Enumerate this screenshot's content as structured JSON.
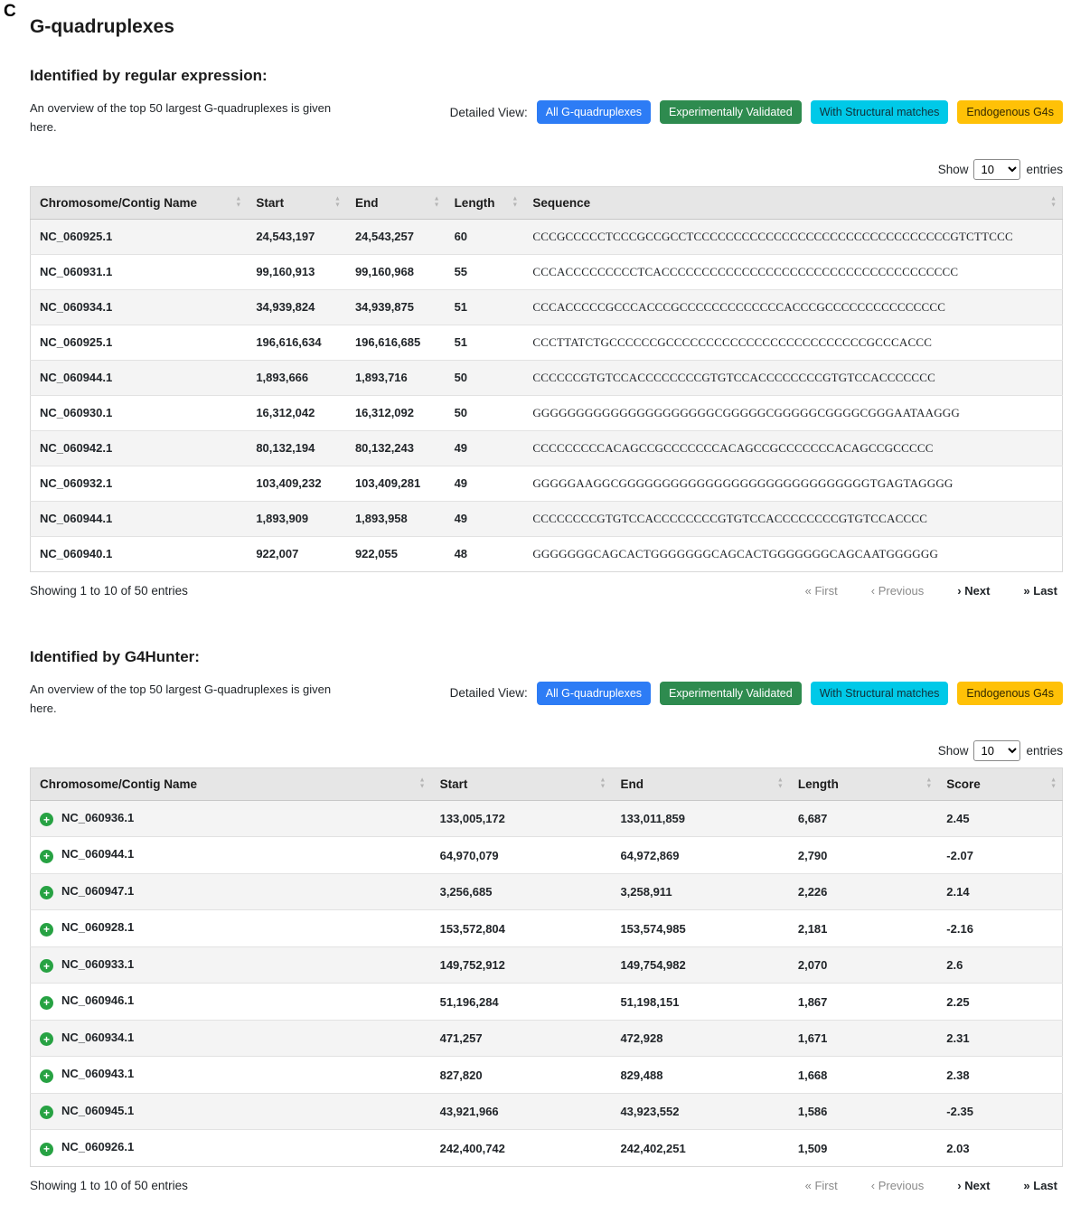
{
  "panel_label": "C",
  "page_title": "G-quadruplexes",
  "detailed_view_label": "Detailed View:",
  "detail_buttons": [
    {
      "key": "all-g-quadruplexes",
      "label": "All G-quadruplexes",
      "bg": "#2d7cf5",
      "fg": "#ffffff"
    },
    {
      "key": "experimentally-validated",
      "label": "Experimentally Validated",
      "bg": "#2e8b4f",
      "fg": "#ffffff"
    },
    {
      "key": "structural-matches",
      "label": "With Structural matches",
      "bg": "#00c9e8",
      "fg": "#10313a"
    },
    {
      "key": "endogenous-g4s",
      "label": "Endogenous G4s",
      "bg": "#ffc107",
      "fg": "#332800"
    }
  ],
  "show_label": "Show",
  "entries_label": "entries",
  "page_size": "10",
  "pagination": [
    {
      "key": "first",
      "label": "« First",
      "enabled": false
    },
    {
      "key": "previous",
      "label": "‹ Previous",
      "enabled": false
    },
    {
      "key": "next",
      "label": "› Next",
      "enabled": true
    },
    {
      "key": "last",
      "label": "» Last",
      "enabled": true
    }
  ],
  "sections": [
    {
      "id": "regex",
      "heading": "Identified by regular expression:",
      "description": "An overview of the top 50 largest G-quadruplexes is given here.",
      "columns": [
        "Chromosome/Contig Name",
        "Start",
        "End",
        "Length",
        "Sequence"
      ],
      "expandable": false,
      "rows": [
        [
          "NC_060925.1",
          "24,543,197",
          "24,543,257",
          "60",
          "CCCGCCCCCTCCCGCCGCCTCCCCCCCCCCCCCCCCCCCCCCCCCCCCCCCCGTCTTCCC"
        ],
        [
          "NC_060931.1",
          "99,160,913",
          "99,160,968",
          "55",
          "CCCACCCCCCCCCTCACCCCCCCCCCCCCCCCCCCCCCCCCCCCCCCCCCCCC"
        ],
        [
          "NC_060934.1",
          "34,939,824",
          "34,939,875",
          "51",
          "CCCACCCCCGCCCACCCGCCCCCCCCCCCCCACCCGCCCCCCCCCCCCCCC"
        ],
        [
          "NC_060925.1",
          "196,616,634",
          "196,616,685",
          "51",
          "CCCTTATCTGCCCCCCGCCCCCCCCCCCCCCCCCCCCCCCCCGCCCACCC"
        ],
        [
          "NC_060944.1",
          "1,893,666",
          "1,893,716",
          "50",
          "CCCCCCGTGTCCACCCCCCCCGTGTCCACCCCCCCCGTGTCCACCCCCCC"
        ],
        [
          "NC_060930.1",
          "16,312,042",
          "16,312,092",
          "50",
          "GGGGGGGGGGGGGGGGGGGGGCGGGGGCGGGGGCGGGGCGGGAATAAGGG"
        ],
        [
          "NC_060942.1",
          "80,132,194",
          "80,132,243",
          "49",
          "CCCCCCCCCACAGCCGCCCCCCCACAGCCGCCCCCCCACAGCCGCCCCC"
        ],
        [
          "NC_060932.1",
          "103,409,232",
          "103,409,281",
          "49",
          "GGGGGAAGGCGGGGGGGGGGGGGGGGGGGGGGGGGGGGGTGAGTAGGGG"
        ],
        [
          "NC_060944.1",
          "1,893,909",
          "1,893,958",
          "49",
          "CCCCCCCCGTGTCCACCCCCCCCGTGTCCACCCCCCCCGTGTCCACCCC"
        ],
        [
          "NC_060940.1",
          "922,007",
          "922,055",
          "48",
          "GGGGGGGCAGCACTGGGGGGGCAGCACTGGGGGGGCAGCAATGGGGGG"
        ]
      ],
      "footer": "Showing 1 to 10 of 50 entries"
    },
    {
      "id": "g4hunter",
      "heading": "Identified by G4Hunter:",
      "description": "An overview of the top 50 largest G-quadruplexes is given here.",
      "columns": [
        "Chromosome/Contig Name",
        "Start",
        "End",
        "Length",
        "Score"
      ],
      "expandable": true,
      "rows": [
        [
          "NC_060936.1",
          "133,005,172",
          "133,011,859",
          "6,687",
          "2.45"
        ],
        [
          "NC_060944.1",
          "64,970,079",
          "64,972,869",
          "2,790",
          "-2.07"
        ],
        [
          "NC_060947.1",
          "3,256,685",
          "3,258,911",
          "2,226",
          "2.14"
        ],
        [
          "NC_060928.1",
          "153,572,804",
          "153,574,985",
          "2,181",
          "-2.16"
        ],
        [
          "NC_060933.1",
          "149,752,912",
          "149,754,982",
          "2,070",
          "2.6"
        ],
        [
          "NC_060946.1",
          "51,196,284",
          "51,198,151",
          "1,867",
          "2.25"
        ],
        [
          "NC_060934.1",
          "471,257",
          "472,928",
          "1,671",
          "2.31"
        ],
        [
          "NC_060943.1",
          "827,820",
          "829,488",
          "1,668",
          "2.38"
        ],
        [
          "NC_060945.1",
          "43,921,966",
          "43,923,552",
          "1,586",
          "-2.35"
        ],
        [
          "NC_060926.1",
          "242,400,742",
          "242,402,251",
          "1,509",
          "2.03"
        ]
      ],
      "footer": "Showing 1 to 10 of 50 entries"
    }
  ]
}
